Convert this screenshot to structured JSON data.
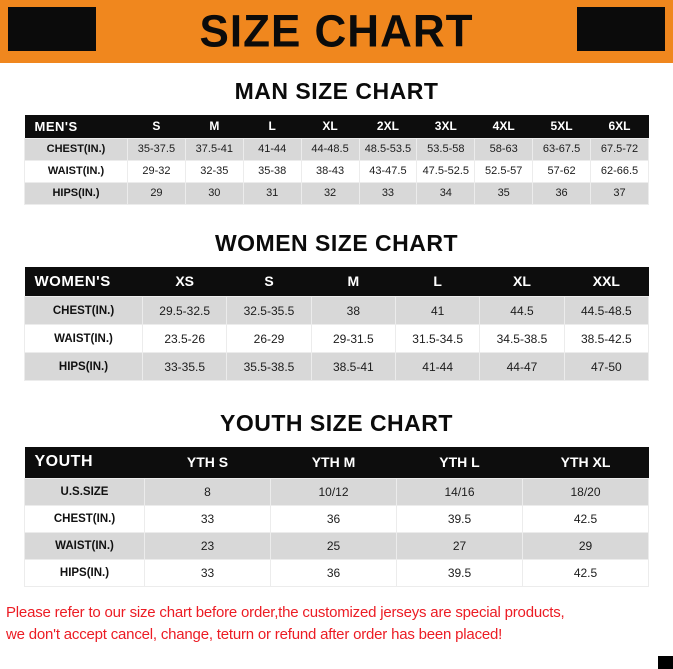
{
  "title": "SIZE CHART",
  "colors": {
    "banner_orange": "#F0871E",
    "table_header_black": "#0D0D0D",
    "row_gray": "#D8D8D8",
    "footer_red": "#EC1C24"
  },
  "sections": [
    {
      "heading": "MAN SIZE CHART",
      "table": {
        "header": [
          "MEN'S",
          "S",
          "M",
          "L",
          "XL",
          "2XL",
          "3XL",
          "4XL",
          "5XL",
          "6XL"
        ],
        "rows": [
          [
            "CHEST(IN.)",
            "35-37.5",
            "37.5-41",
            "41-44",
            "44-48.5",
            "48.5-53.5",
            "53.5-58",
            "58-63",
            "63-67.5",
            "67.5-72"
          ],
          [
            "WAIST(IN.)",
            "29-32",
            "32-35",
            "35-38",
            "38-43",
            "43-47.5",
            "47.5-52.5",
            "52.5-57",
            "57-62",
            "62-66.5"
          ],
          [
            "HIPS(IN.)",
            "29",
            "30",
            "31",
            "32",
            "33",
            "34",
            "35",
            "36",
            "37"
          ]
        ]
      }
    },
    {
      "heading": "WOMEN SIZE CHART",
      "table": {
        "header": [
          "WOMEN'S",
          "XS",
          "S",
          "M",
          "L",
          "XL",
          "XXL"
        ],
        "rows": [
          [
            "CHEST(IN.)",
            "29.5-32.5",
            "32.5-35.5",
            "38",
            "41",
            "44.5",
            "44.5-48.5"
          ],
          [
            "WAIST(IN.)",
            "23.5-26",
            "26-29",
            "29-31.5",
            "31.5-34.5",
            "34.5-38.5",
            "38.5-42.5"
          ],
          [
            "HIPS(IN.)",
            "33-35.5",
            "35.5-38.5",
            "38.5-41",
            "41-44",
            "44-47",
            "47-50"
          ]
        ]
      }
    },
    {
      "heading": "YOUTH SIZE CHART",
      "table": {
        "header": [
          "YOUTH",
          "YTH S",
          "YTH M",
          "YTH L",
          "YTH XL"
        ],
        "rows": [
          [
            "U.S.SIZE",
            "8",
            "10/12",
            "14/16",
            "18/20"
          ],
          [
            "CHEST(IN.)",
            "33",
            "36",
            "39.5",
            "42.5"
          ],
          [
            "WAIST(IN.)",
            "23",
            "25",
            "27",
            "29"
          ],
          [
            "HIPS(IN.)",
            "33",
            "36",
            "39.5",
            "42.5"
          ]
        ]
      }
    }
  ],
  "footer": {
    "line1": "Please refer to our size chart before order,the customized jerseys are special products,",
    "line2": "we don't accept cancel, change, teturn or refund after order has been placed!"
  }
}
